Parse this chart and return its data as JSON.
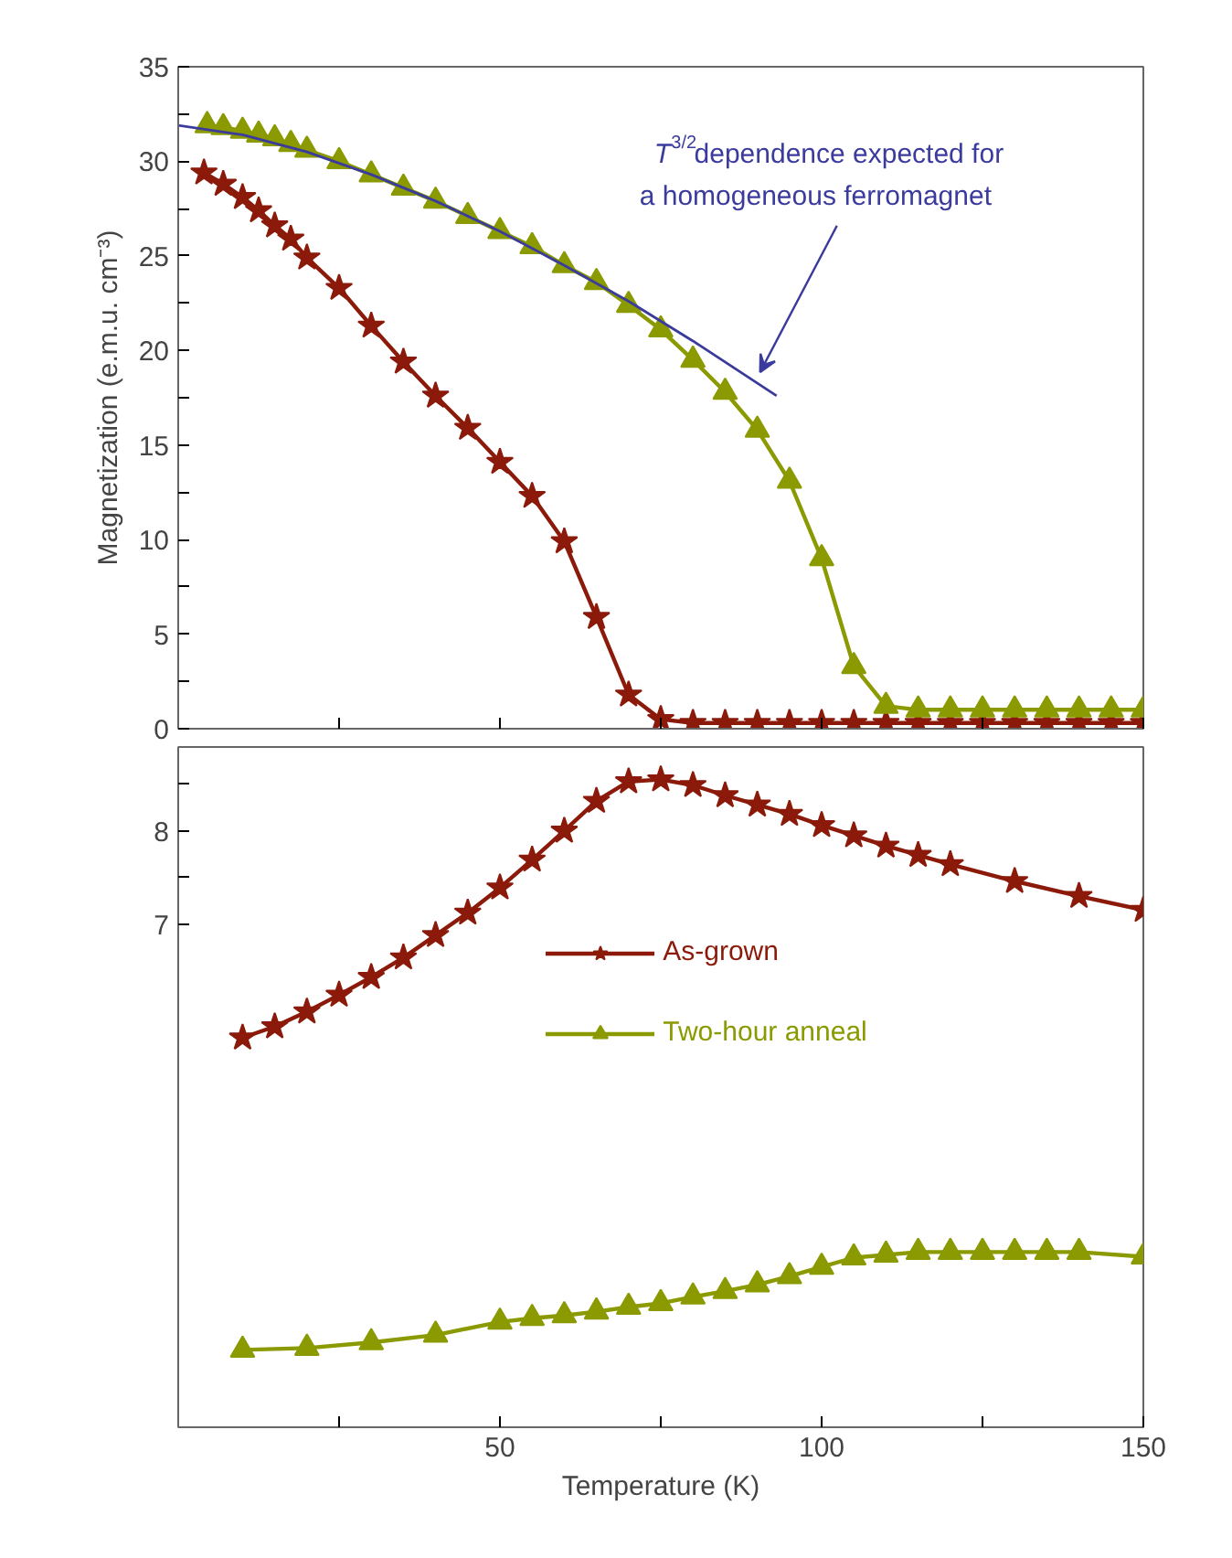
{
  "chart_data": [
    {
      "type": "line",
      "ylabel": "Magnetization (e.m.u. cm⁻³)",
      "xlim": [
        0,
        150
      ],
      "ylim": [
        0,
        35
      ],
      "xticks": [
        {
          "value": 25,
          "label": null
        },
        {
          "value": 50,
          "label": null
        },
        {
          "value": 75,
          "label": null
        },
        {
          "value": 100,
          "label": null
        },
        {
          "value": 125,
          "label": null
        },
        {
          "value": 150,
          "label": null
        }
      ],
      "yticks": [
        0,
        {
          "value": 2.5,
          "label": null
        },
        5,
        {
          "value": 7.5,
          "label": null
        },
        10,
        {
          "value": 12.5,
          "label": null
        },
        15,
        {
          "value": 17.5,
          "label": null
        },
        20,
        {
          "value": 22.5,
          "label": null
        },
        25,
        {
          "value": 27.5,
          "label": null
        },
        30,
        {
          "value": 32.5,
          "label": null
        },
        35
      ],
      "tick_labels": "y",
      "grid": false,
      "legend": false,
      "series": [
        {
          "color": "#8b1a0a",
          "marker": "star",
          "x": [
            4,
            7,
            10,
            12.5,
            15,
            17.5,
            20,
            25,
            30,
            35,
            40,
            45,
            50,
            55,
            60,
            65,
            70,
            75,
            80,
            85,
            90,
            95,
            100,
            105,
            110,
            115,
            120,
            125,
            130,
            135,
            140,
            145,
            150
          ],
          "values": [
            29.4,
            28.8,
            28.1,
            27.4,
            26.6,
            25.9,
            24.9,
            23.3,
            21.3,
            19.4,
            17.6,
            15.9,
            14.1,
            12.3,
            9.9,
            5.9,
            1.8,
            0.5,
            0.3,
            0.3,
            0.3,
            0.3,
            0.3,
            0.3,
            0.3,
            0.3,
            0.3,
            0.3,
            0.3,
            0.3,
            0.3,
            0.3,
            0.3
          ]
        },
        {
          "color": "#8a9a00",
          "marker": "triangle",
          "x": [
            4.5,
            7,
            10,
            12.5,
            15,
            17.5,
            20,
            25,
            30,
            35,
            40,
            45,
            50,
            55,
            60,
            65,
            70,
            75,
            80,
            85,
            90,
            95,
            100,
            105,
            110,
            115,
            120,
            125,
            130,
            135,
            140,
            145,
            150
          ],
          "values": [
            31.9,
            31.8,
            31.6,
            31.4,
            31.2,
            30.9,
            30.6,
            30.0,
            29.3,
            28.6,
            27.9,
            27.1,
            26.3,
            25.5,
            24.5,
            23.6,
            22.4,
            21.1,
            19.5,
            17.8,
            15.8,
            13.1,
            9.0,
            3.3,
            1.2,
            1.0,
            1.0,
            1.0,
            1.0,
            1.0,
            1.0,
            1.0,
            1.0
          ]
        },
        {
          "color": "#3b3b9e",
          "marker": "none",
          "x": [
            0,
            10,
            20,
            30,
            40,
            50,
            60,
            70,
            80,
            93
          ],
          "values": [
            31.9,
            31.4,
            30.5,
            29.3,
            27.9,
            26.3,
            24.5,
            22.6,
            20.5,
            17.6
          ]
        }
      ],
      "annotations": [
        "T$^{3/2}$dependence expected for\na homogeneous ferromagnet"
      ]
    },
    {
      "type": "line",
      "xlabel": "Temperature (K)",
      "xlim": [
        0,
        150
      ],
      "ylim": [
        1.6,
        8.9
      ],
      "xticks": [
        {
          "value": 25,
          "label": null
        },
        {
          "value": 50,
          "label": "50"
        },
        {
          "value": 75,
          "label": null
        },
        {
          "value": 100,
          "label": "100"
        },
        {
          "value": 125,
          "label": null
        },
        {
          "value": 150,
          "label": "150"
        }
      ],
      "yticks": [
        7,
        {
          "value": 7.5,
          "label": null
        },
        8,
        {
          "value": 8.5,
          "label": null
        }
      ],
      "grid": false,
      "legend": "center",
      "series": [
        {
          "name": "As-grown",
          "color": "#8b1a0a",
          "marker": "star",
          "x": [
            10,
            15,
            20,
            25,
            30,
            35,
            40,
            45,
            50,
            55,
            60,
            65,
            70,
            75,
            80,
            85,
            90,
            95,
            100,
            105,
            110,
            115,
            120,
            130,
            140,
            150
          ],
          "values": [
            5.78,
            5.9,
            6.06,
            6.24,
            6.43,
            6.64,
            6.88,
            7.12,
            7.39,
            7.69,
            8.0,
            8.32,
            8.53,
            8.55,
            8.49,
            8.38,
            8.28,
            8.18,
            8.06,
            7.95,
            7.84,
            7.74,
            7.64,
            7.46,
            7.3,
            7.15
          ]
        },
        {
          "name": "Two-hour anneal",
          "color": "#8a9a00",
          "marker": "triangle",
          "x": [
            10,
            20,
            30,
            40,
            50,
            55,
            60,
            65,
            70,
            75,
            80,
            85,
            90,
            95,
            100,
            105,
            110,
            115,
            120,
            125,
            130,
            135,
            140,
            150
          ],
          "values": [
            2.43,
            2.45,
            2.51,
            2.59,
            2.73,
            2.77,
            2.8,
            2.84,
            2.89,
            2.93,
            3.0,
            3.06,
            3.13,
            3.22,
            3.32,
            3.42,
            3.45,
            3.48,
            3.48,
            3.48,
            3.48,
            3.48,
            3.48,
            3.43
          ]
        }
      ]
    }
  ]
}
